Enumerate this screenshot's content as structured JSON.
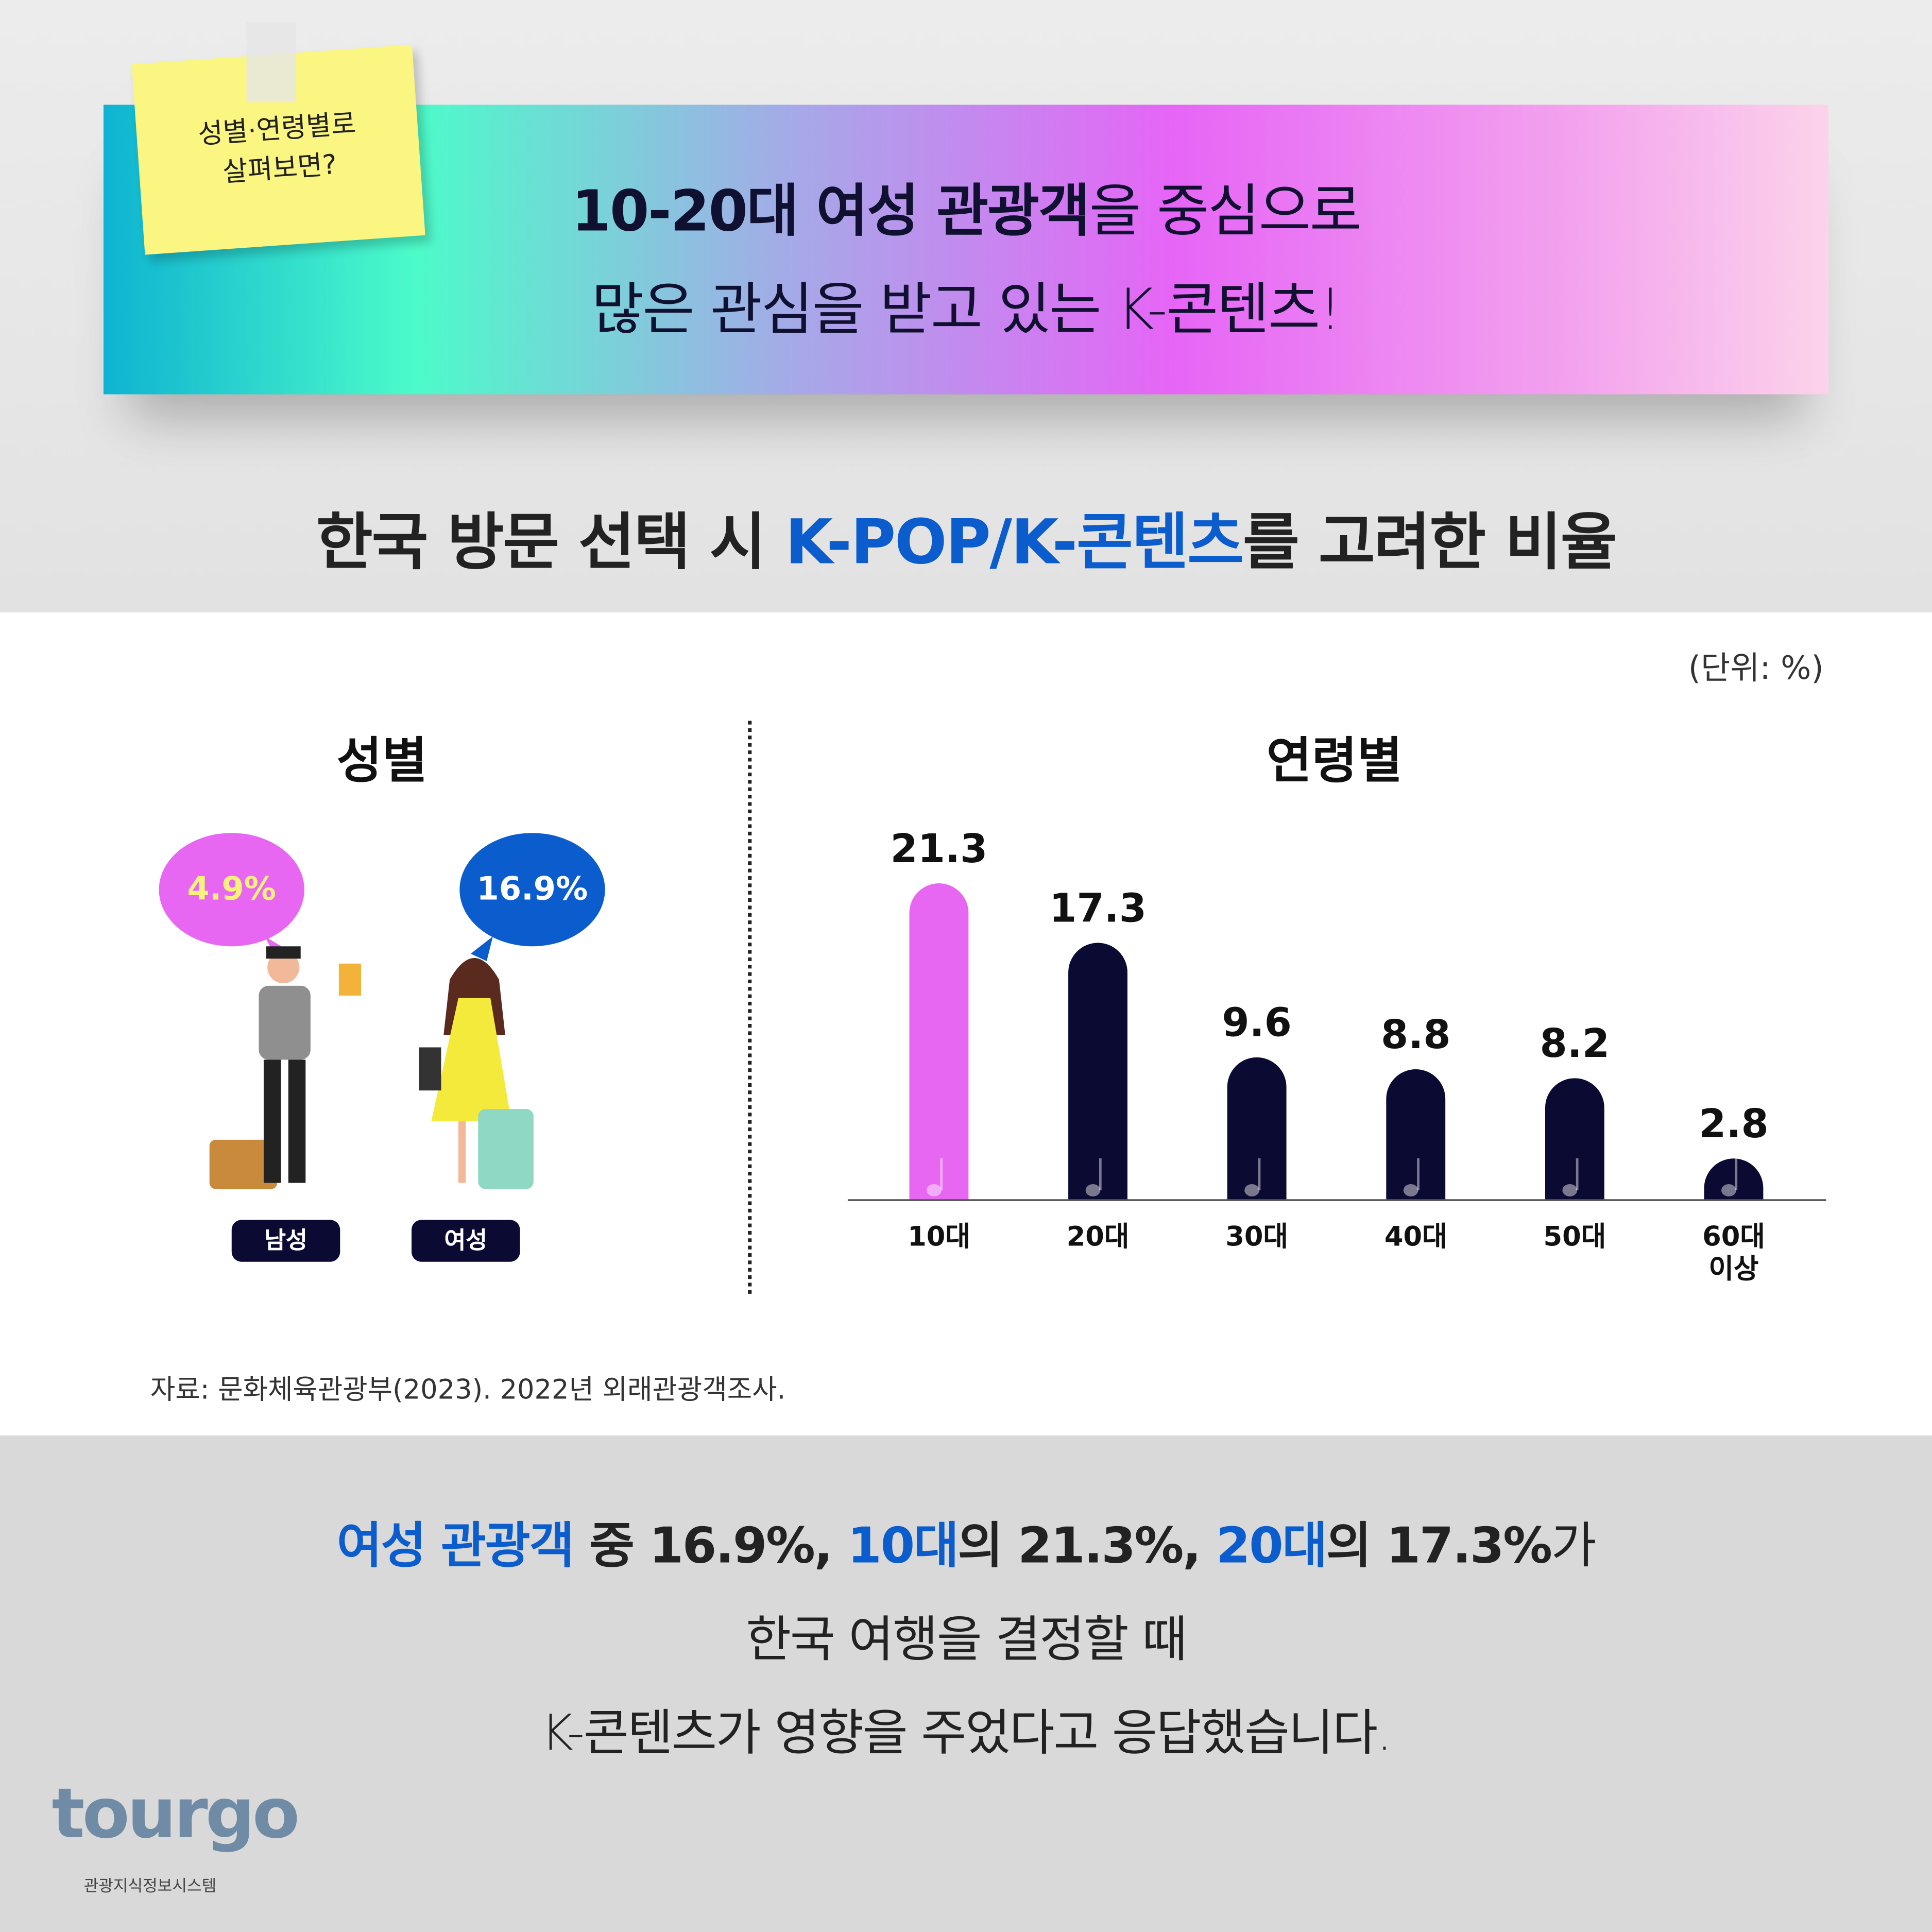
{
  "note": [
    "성별·연령별로",
    "살펴보면?"
  ],
  "banner": {
    "line1": [
      {
        "text": "10-20대 여성 관광객",
        "emphasis": true
      },
      {
        "text": "을 중심으로",
        "emphasis": false
      }
    ],
    "line2": "많은 관심을 받고 있는 K-콘텐츠!"
  },
  "title": [
    {
      "text": "한국 방문 선택 시 ",
      "emphasis": false
    },
    {
      "text": "K-POP/K-콘텐츠",
      "emphasis": true
    },
    {
      "text": "를 고려한 비율",
      "emphasis": false
    }
  ],
  "unit": "(단위: %)",
  "gender": {
    "title": "성별",
    "groups": [
      {
        "label": "남성",
        "value_label": "4.9%"
      },
      {
        "label": "여성",
        "value_label": "16.9%"
      }
    ]
  },
  "chart_data": {
    "type": "bar",
    "title": "연령별",
    "categories": [
      "10대",
      "20대",
      "30대",
      "40대",
      "50대",
      "60대 이상"
    ],
    "values": [
      21.3,
      17.3,
      9.6,
      8.8,
      8.2,
      2.8
    ],
    "colors": [
      "#e766f2",
      "#0b0a33",
      "#0b0a33",
      "#0b0a33",
      "#0b0a33",
      "#0b0a33"
    ],
    "ylim": [
      0,
      22
    ]
  },
  "source": "자료: 문화체육관광부(2023). 2022년 외래관광객조사.",
  "summary": [
    [
      {
        "text": "여성 관광객",
        "emphasis": true
      },
      {
        "text": " 중 16.9%, ",
        "emphasis": false,
        "bold": true
      },
      {
        "text": "10대",
        "emphasis": true
      },
      {
        "text": "의 21.3%, ",
        "emphasis": false,
        "bold": true
      },
      {
        "text": "20대",
        "emphasis": true
      },
      {
        "text": "의 17.3%",
        "emphasis": false,
        "bold": true
      },
      {
        "text": "가",
        "emphasis": false,
        "bold": false
      }
    ],
    [
      {
        "text": "한국 여행을 결정할 때",
        "emphasis": false,
        "bold": false
      }
    ],
    [
      {
        "text": "K-콘텐츠가 영향을 주었다고 응답했습니다.",
        "emphasis": false,
        "bold": false
      }
    ]
  ],
  "logo": {
    "name": "tourgo",
    "caption": "관광지식정보시스템"
  }
}
